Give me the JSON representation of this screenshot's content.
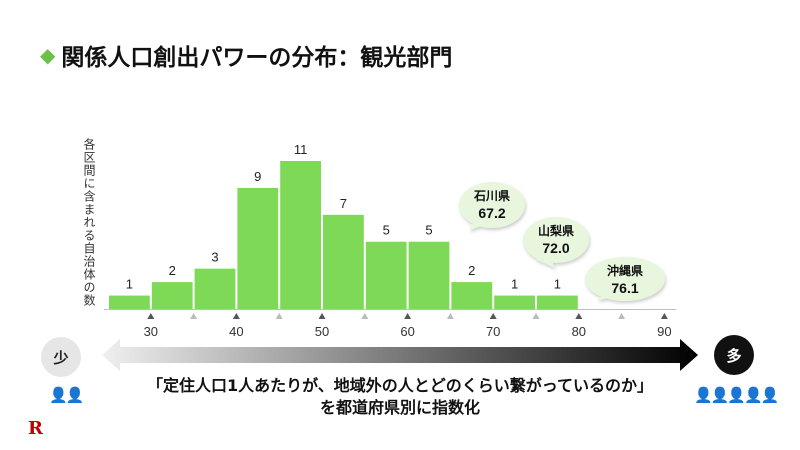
{
  "title": "関係人口創出パワーの分布：観光部門",
  "title_marker": "◆",
  "y_axis_label": "各区間に含まれる自治体の数",
  "chart_data": {
    "type": "bar",
    "bin_width": 5,
    "bins": [
      {
        "start": 25,
        "end": 30,
        "count": 1
      },
      {
        "start": 30,
        "end": 35,
        "count": 2
      },
      {
        "start": 35,
        "end": 40,
        "count": 3
      },
      {
        "start": 40,
        "end": 45,
        "count": 9
      },
      {
        "start": 45,
        "end": 50,
        "count": 11
      },
      {
        "start": 50,
        "end": 55,
        "count": 7
      },
      {
        "start": 55,
        "end": 60,
        "count": 5
      },
      {
        "start": 60,
        "end": 65,
        "count": 5
      },
      {
        "start": 65,
        "end": 70,
        "count": 2
      },
      {
        "start": 70,
        "end": 75,
        "count": 1
      },
      {
        "start": 75,
        "end": 80,
        "count": 1
      },
      {
        "start": 80,
        "end": 85,
        "count": 0
      },
      {
        "start": 85,
        "end": 90,
        "count": 0
      }
    ],
    "empty_label": "-",
    "xlim": [
      25,
      90
    ],
    "x_ticks": [
      30,
      40,
      50,
      60,
      70,
      80,
      90
    ],
    "minor_tick_step": 5,
    "bar_color": "#7ed957",
    "callouts": [
      {
        "name": "石川県",
        "value": "67.2"
      },
      {
        "name": "山梨県",
        "value": "72.0"
      },
      {
        "name": "沖縄県",
        "value": "76.1"
      }
    ]
  },
  "scale": {
    "low_label": "少",
    "high_label": "多",
    "low_people": "👤👤",
    "high_people": "👤👤👤👤👤"
  },
  "caption_line1": "「定住人口1人あたりが、地域外の人とどのくらい繋がっているのか」",
  "caption_line2": "を都道府県別に指数化",
  "logo": "R"
}
